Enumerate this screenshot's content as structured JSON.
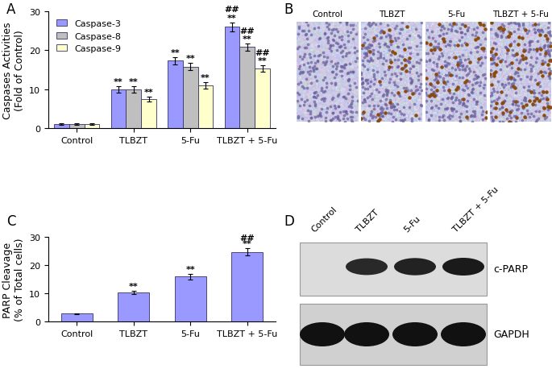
{
  "chart_data": [
    {
      "type": "bar",
      "panel": "A",
      "categories": [
        "Control",
        "TLBZT",
        "5-Fu",
        "TLBZT + 5-Fu"
      ],
      "ylabel": "Caspases Activities\n(Fold of Control)",
      "ylim": [
        0,
        30
      ],
      "yticks": [
        0,
        10,
        20,
        30
      ],
      "legend": "upper left",
      "series": [
        {
          "name": "Caspase-3",
          "color": "#9999ff",
          "values": [
            1,
            10,
            17.3,
            26
          ],
          "errors": [
            0.2,
            0.8,
            1.0,
            1.2
          ],
          "significance": [
            null,
            "**",
            "**",
            "**"
          ],
          "significance_combined": [
            null,
            null,
            null,
            "##"
          ]
        },
        {
          "name": "Caspase-8",
          "color": "#bfbfbf",
          "values": [
            1,
            10,
            15.8,
            20.8
          ],
          "errors": [
            0.2,
            0.8,
            0.9,
            0.9
          ],
          "significance": [
            null,
            "**",
            "**",
            "**"
          ],
          "significance_combined": [
            null,
            null,
            null,
            "##"
          ]
        },
        {
          "name": "Caspase-9",
          "color": "#ffffcc",
          "values": [
            1,
            7.5,
            11,
            15.3
          ],
          "errors": [
            0.2,
            0.6,
            0.8,
            0.8
          ],
          "significance": [
            null,
            "**",
            "**",
            "**"
          ],
          "significance_combined": [
            null,
            null,
            null,
            "##"
          ]
        }
      ]
    },
    {
      "type": "bar",
      "panel": "C",
      "categories": [
        "Control",
        "TLBZT",
        "5-Fu",
        "TLBZT + 5-Fu"
      ],
      "ylabel": "PARP Cleavage\n(% of Total cells)",
      "ylim": [
        0,
        30
      ],
      "yticks": [
        0,
        10,
        20,
        30
      ],
      "color": "#9999ff",
      "values": [
        2.8,
        10.3,
        16,
        24.7
      ],
      "errors": [
        0.2,
        0.7,
        1.0,
        1.3
      ],
      "significance": [
        null,
        "**",
        "**",
        "**"
      ],
      "significance_combined": [
        null,
        null,
        null,
        "##"
      ]
    }
  ],
  "image_panels": {
    "B": {
      "panel": "B",
      "labels": [
        "Control",
        "TLBZT",
        "5-Fu",
        "TLBZT + 5-Fu"
      ]
    },
    "D": {
      "panel": "D",
      "lanes": [
        "Control",
        "TLBZT",
        "5-Fu",
        "TLBZT + 5-Fu"
      ],
      "bands": [
        "c-PARP",
        "GAPDH"
      ]
    }
  }
}
